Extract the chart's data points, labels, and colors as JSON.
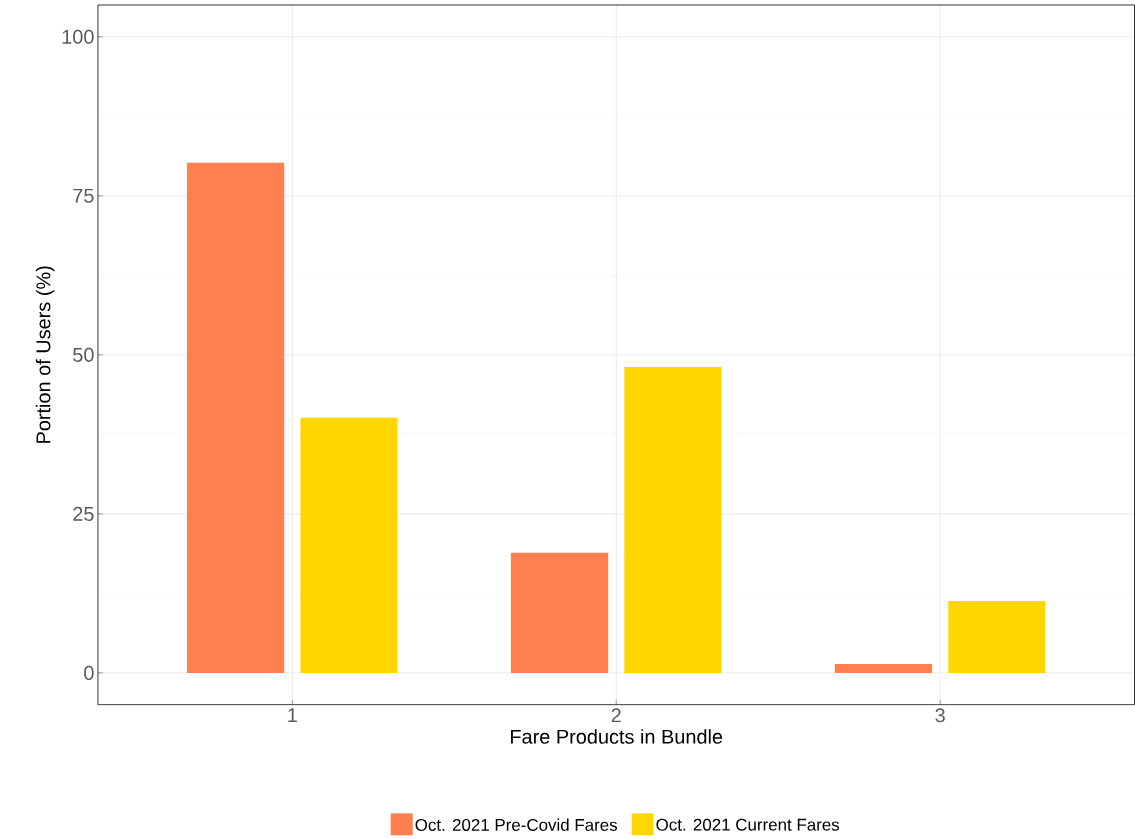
{
  "chart_data": {
    "type": "bar",
    "xlabel": "Fare Products in Bundle",
    "ylabel": "Portion of Users (%)",
    "categories": [
      "1",
      "2",
      "3"
    ],
    "series": [
      {
        "name": "Oct. 2021 Pre-Covid Fares",
        "color": "#ff7f50",
        "values": [
          80.2,
          18.9,
          1.4
        ]
      },
      {
        "name": "Oct. 2021 Current Fares",
        "color": "#ffd700",
        "values": [
          40.1,
          48.1,
          11.3
        ]
      }
    ],
    "ylim": [
      -5,
      105
    ],
    "yticks": [
      0,
      25,
      50,
      75,
      100
    ],
    "grid": true,
    "legend": "bottom"
  }
}
